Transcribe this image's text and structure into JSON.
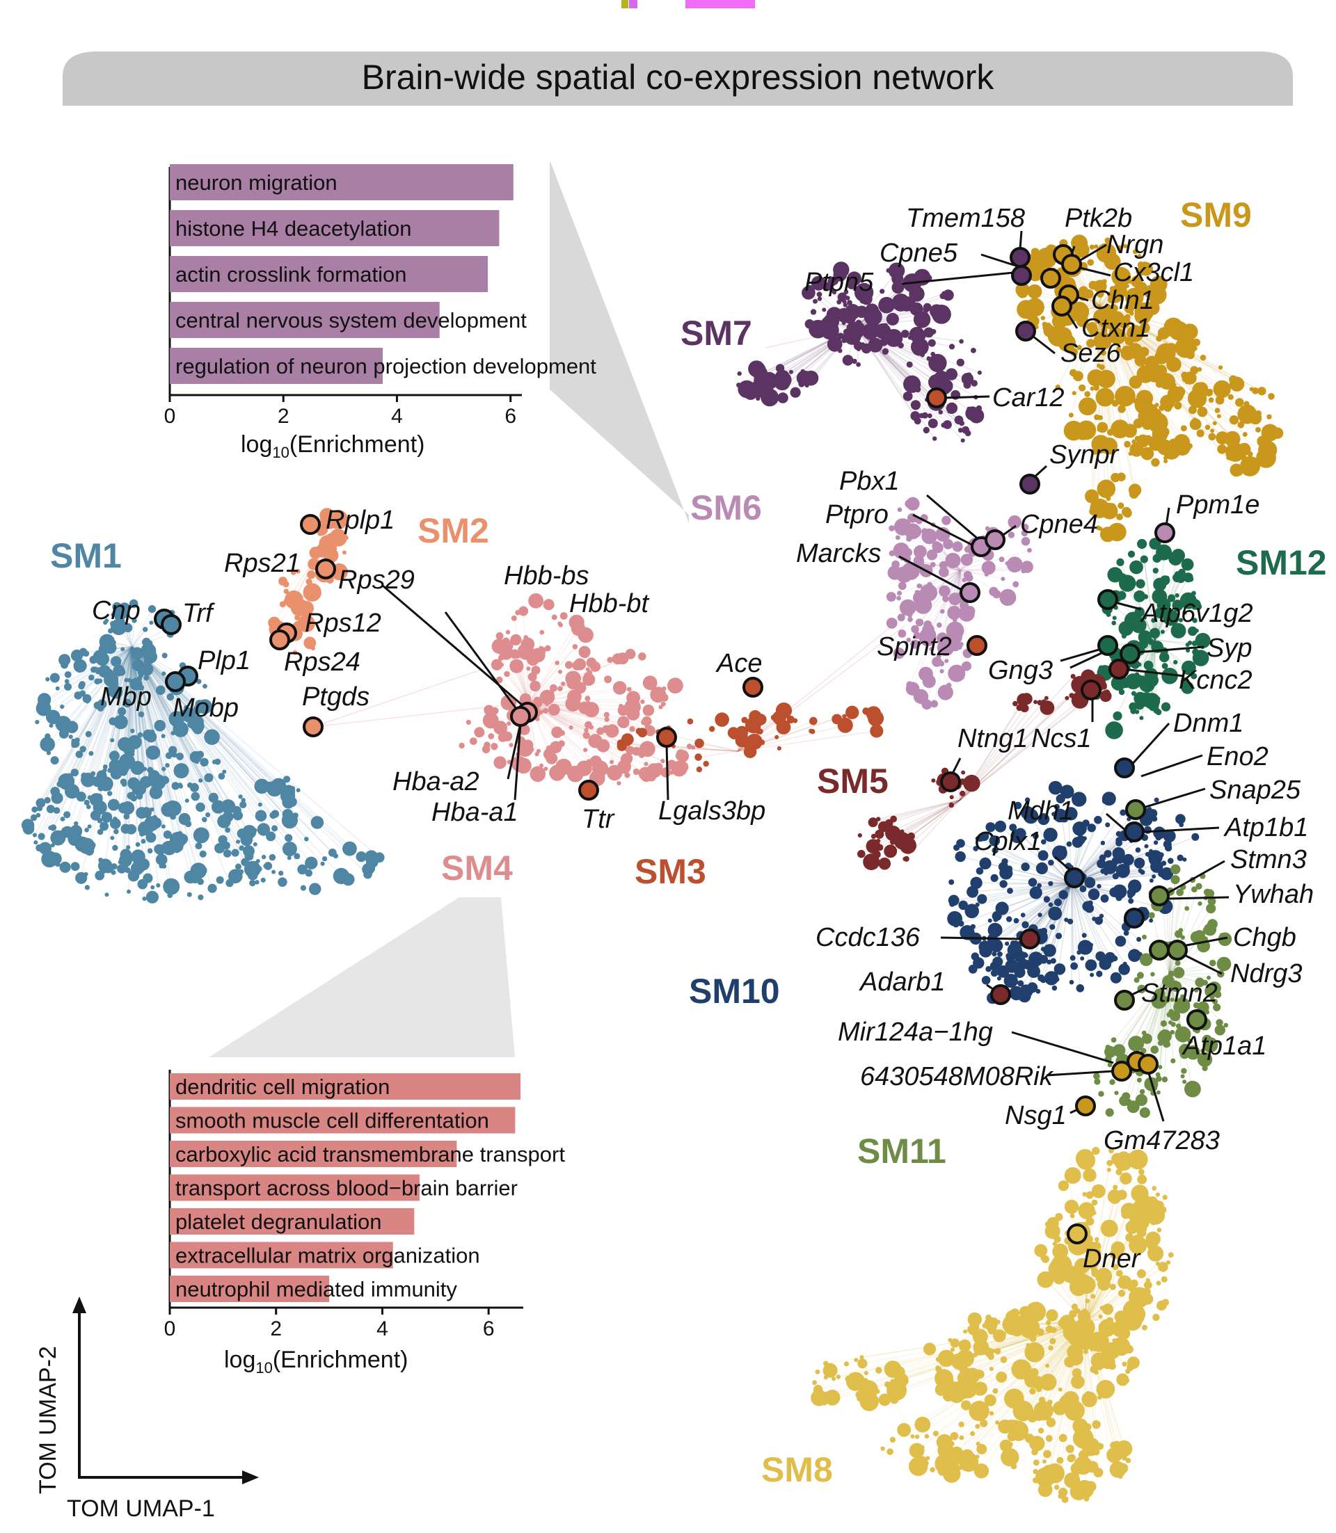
{
  "title": "Brain-wide spatial co-expression network",
  "umap_axes": {
    "x": "TOM UMAP-1",
    "y": "TOM UMAP-2"
  },
  "modules": [
    {
      "id": "SM1",
      "label": "SM1",
      "color": "#4f86a4"
    },
    {
      "id": "SM2",
      "label": "SM2",
      "color": "#e8916c"
    },
    {
      "id": "SM3",
      "label": "SM3",
      "color": "#bb4f2e"
    },
    {
      "id": "SM4",
      "label": "SM4",
      "color": "#de8d8e"
    },
    {
      "id": "SM5",
      "label": "SM5",
      "color": "#7b2a2c"
    },
    {
      "id": "SM6",
      "label": "SM6",
      "color": "#b98bb4"
    },
    {
      "id": "SM7",
      "label": "SM7",
      "color": "#5b3464"
    },
    {
      "id": "SM8",
      "label": "SM8",
      "color": "#e0be4c"
    },
    {
      "id": "SM9",
      "label": "SM9",
      "color": "#c9971c"
    },
    {
      "id": "SM10",
      "label": "SM10",
      "color": "#213f6d"
    },
    {
      "id": "SM11",
      "label": "SM11",
      "color": "#6e8c46"
    },
    {
      "id": "SM12",
      "label": "SM12",
      "color": "#1d6a4d"
    }
  ],
  "genes": [
    "Rplp1",
    "Rps21",
    "Rps29",
    "Rps12",
    "Rps24",
    "Ptgds",
    "Cnp",
    "Trf",
    "Plp1",
    "Mbp",
    "Mobp",
    "Hbb-bs",
    "Hbb-bt",
    "Hba-a2",
    "Hba-a1",
    "Ttr",
    "Lgals3bp",
    "Ace",
    "Tmem158",
    "Ptk2b",
    "Cpne5",
    "Nrgn",
    "Cx3cl1",
    "Ptpn5",
    "Chn1",
    "Ctxn1",
    "Sez6",
    "Car12",
    "Synpr",
    "Pbx1",
    "Ptpro",
    "Cpne4",
    "Ppm1e",
    "Marcks",
    "Atp6v1g2",
    "Spint2",
    "Syp",
    "Gng3",
    "Kcnc2",
    "Ntng1",
    "Ncs1",
    "Dnm1",
    "Eno2",
    "Snap25",
    "Mdh1",
    "Atp1b1",
    "Cplx1",
    "Stmn3",
    "Ywhah",
    "Ccdc136",
    "Chgb",
    "Ndrg3",
    "Adarb1",
    "Stmn2",
    "Atp1a1",
    "Mir124a−1hg",
    "6430548M08Rik",
    "Nsg1",
    "Gm47283",
    "Dner"
  ],
  "go_top": {
    "terms": [
      "neuron migration",
      "histone H4 deacetylation",
      "actin crosslink formation",
      "central nervous system development",
      "regulation of neuron projection development"
    ],
    "values": [
      6.05,
      5.8,
      5.6,
      4.75,
      3.75
    ],
    "xlim": [
      0,
      6.2
    ],
    "ticks": [
      "0",
      "2",
      "4",
      "6"
    ],
    "xlabel_main": "log",
    "xlabel_sub": "10",
    "xlabel_rest": "(Enrichment)",
    "bar_color": "#a97fa5"
  },
  "go_bottom": {
    "terms": [
      "dendritic cell migration",
      "smooth muscle cell differentation",
      "carboxylic acid transmembrane transport",
      "transport across blood−brain barrier",
      "platelet degranulation",
      "extracellular matrix organization",
      "neutrophil mediated immunity"
    ],
    "values": [
      6.6,
      6.5,
      5.4,
      4.7,
      4.6,
      4.2,
      3.0
    ],
    "xlim": [
      0,
      6.6
    ],
    "ticks": [
      "0",
      "2",
      "4",
      "6"
    ],
    "xlabel_main": "log",
    "xlabel_sub": "10",
    "xlabel_rest": "(Enrichment)",
    "bar_color": "#d88584"
  }
}
